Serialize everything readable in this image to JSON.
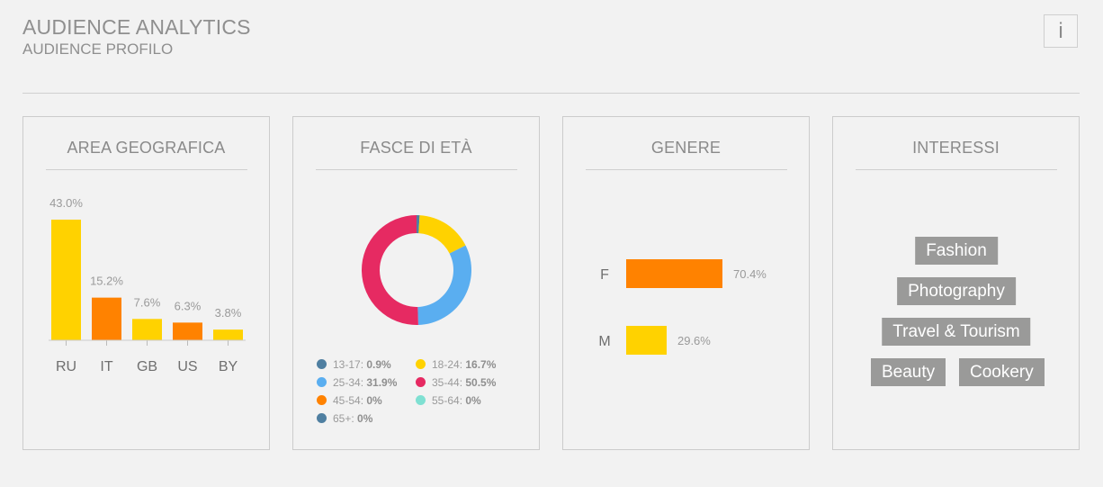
{
  "header": {
    "title": "AUDIENCE ANALYTICS",
    "subtitle": "AUDIENCE PROFILO",
    "info_label": "i"
  },
  "cards": {
    "geo": {
      "title": "AREA GEOGRAFICA"
    },
    "age": {
      "title": "FASCE DI ETÀ"
    },
    "gender": {
      "title": "GENERE"
    },
    "interests": {
      "title": "INTERESSI"
    }
  },
  "chart_data": [
    {
      "type": "bar",
      "title": "AREA GEOGRAFICA",
      "categories": [
        "RU",
        "IT",
        "GB",
        "US",
        "BY"
      ],
      "values": [
        43.0,
        15.2,
        7.6,
        6.3,
        3.8
      ],
      "value_labels": [
        "43.0%",
        "15.2%",
        "7.6%",
        "6.3%",
        "3.8%"
      ],
      "colors": [
        "#ffd200",
        "#ff8200",
        "#ffd200",
        "#ff8200",
        "#ffd200"
      ],
      "ylim": [
        0,
        43.0
      ],
      "grid": false
    },
    {
      "type": "pie",
      "style": "donut",
      "title": "FASCE DI ETÀ",
      "slices": [
        {
          "label": "13-17:",
          "value_label": "0.9%",
          "value": 0.9,
          "color": "#4f7fa1"
        },
        {
          "label": "18-24:",
          "value_label": "16.7%",
          "value": 16.7,
          "color": "#ffd200"
        },
        {
          "label": "25-34:",
          "value_label": "31.9%",
          "value": 31.9,
          "color": "#5aaef0"
        },
        {
          "label": "35-44:",
          "value_label": "50.5%",
          "value": 50.5,
          "color": "#e62a62"
        },
        {
          "label": "45-54:",
          "value_label": "0%",
          "value": 0,
          "color": "#ff8200"
        },
        {
          "label": "55-64:",
          "value_label": "0%",
          "value": 0,
          "color": "#7fe0d2"
        },
        {
          "label": "65+:",
          "value_label": "0%",
          "value": 0,
          "color": "#4f7fa1"
        }
      ]
    },
    {
      "type": "bar",
      "orientation": "horizontal",
      "title": "GENERE",
      "categories": [
        "F",
        "M"
      ],
      "values": [
        70.4,
        29.6
      ],
      "value_labels": [
        "70.4%",
        "29.6%"
      ],
      "colors": [
        "#ff8200",
        "#ffd200"
      ],
      "xlim": [
        0,
        70.4
      ]
    }
  ],
  "interests": {
    "tags": [
      "Fashion",
      "Photography",
      "Travel & Tourism",
      "Beauty",
      "Cookery"
    ]
  }
}
